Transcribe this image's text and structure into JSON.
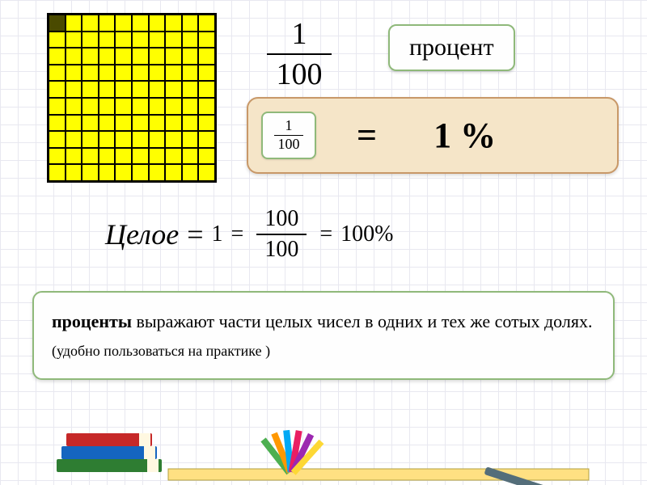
{
  "grid": {
    "rows": 10,
    "cols": 10,
    "bg_color": "#ffff00",
    "dark_cell_color": "#4a4a00",
    "dark_cells": [
      [
        0,
        0
      ]
    ]
  },
  "fraction_main": {
    "numerator": "1",
    "denominator": "100"
  },
  "percent_label": "процент",
  "equation": {
    "small_fraction": {
      "numerator": "1",
      "denominator": "100"
    },
    "equals": "=",
    "result": "1 %"
  },
  "whole": {
    "label": "Целое",
    "eq": "=",
    "one": "1",
    "frac_num": "100",
    "frac_den": "100",
    "percent": "100%"
  },
  "definition": {
    "bold_part": "проценты",
    "text1": " выражают части целых чисел в одних и тех же сотых долях.",
    "text2": " (удобно пользоваться на практике )"
  },
  "colors": {
    "box_border": "#8fb97a",
    "eq_box_bg": "#f5e5c8",
    "eq_box_border": "#c89868"
  }
}
